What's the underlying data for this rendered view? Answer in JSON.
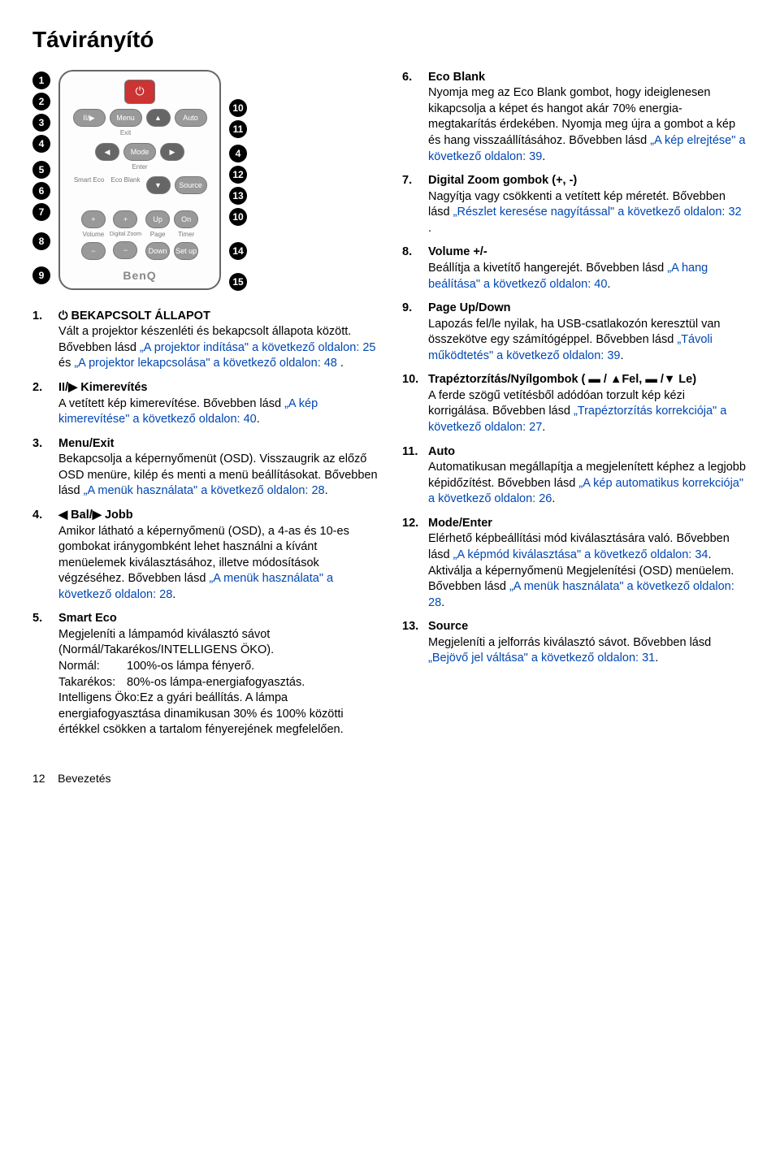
{
  "page": {
    "title": "Távirányító",
    "footer_num": "12",
    "footer_text": "Bevezetés"
  },
  "remote": {
    "menu": "Menu",
    "exit": "Exit",
    "auto": "Auto",
    "mode": "Mode",
    "enter": "Enter",
    "source": "Source",
    "smarteco": "Smart Eco",
    "ecoblank": "Eco Blank",
    "volume": "Volume",
    "digitalzoom": "Digital\nZoom",
    "page": "Page",
    "timer": "Timer",
    "up": "Up",
    "down": "Down",
    "on": "On",
    "setup": "Set up",
    "brand": "BenQ",
    "freeze": "II/▶"
  },
  "left": [
    {
      "n": "1.",
      "sym": "⏻",
      "t": "BEKAPCSOLT ÁLLAPOT",
      "b1": "Vált a projektor készenléti és bekapcsolt állapota között. Bővebben lásd ",
      "l1": "„A projektor indítása\" a következő oldalon: 25",
      "m1": " és ",
      "l2": "„A projektor lekapcsolása\" a következő oldalon: 48",
      "e1": " ."
    },
    {
      "n": "2.",
      "sym": "II/▶",
      "t": "Kimerevítés",
      "b1": "A vetített kép kimerevítése. Bővebben lásd ",
      "l1": "„A kép kimerevítése\" a következő oldalon: 40",
      "e1": "."
    },
    {
      "n": "3.",
      "t": "Menu/Exit",
      "b1": "Bekapcsolja a képernyőmenüt (OSD). Visszaugrik az előző OSD menüre, kilép és menti a menü beállításokat. Bővebben lásd ",
      "l1": "„A menük használata\" a következő oldalon: 28",
      "e1": "."
    },
    {
      "n": "4.",
      "sym": "◀ Bal/▶ Jobb",
      "t": "",
      "b1": "Amikor látható a képernyőmenü (OSD), a 4-as és 10-es gombokat iránygombként lehet használni a kívánt menüelemek kiválasztásához, illetve módosítások végzéséhez. Bővebben lásd ",
      "l1": "„A menük használata\" a következő oldalon: 28",
      "e1": "."
    },
    {
      "n": "5.",
      "t": "Smart Eco",
      "b1": "Megjeleníti a lámpamód kiválasztó sávot (Normál/Takarékos/INTELLIGENS ÖKO).",
      "dl": [
        {
          "k": "Normál:",
          "v": "100%-os lámpa fényerő."
        },
        {
          "k": "Takarékos:",
          "v": "80%-os lámpa-energiafogyasztás."
        },
        {
          "k": "Intelligens Öko:",
          "v": "Ez a gyári beállítás. A lámpa energiafogyasztása dinamikusan 30% és 100% közötti értékkel csökken a tartalom fényerejének megfelelően.",
          "full": true
        }
      ]
    }
  ],
  "right": [
    {
      "n": "6.",
      "t": "Eco Blank",
      "b1": "Nyomja meg az Eco Blank gombot, hogy ideiglenesen kikapcsolja a képet és hangot akár 70% energia-megtakarítás érdekében. Nyomja meg újra a gombot a kép és hang visszaállításához. Bővebben lásd ",
      "l1": "„A kép elrejtése\" a következő oldalon: 39",
      "e1": "."
    },
    {
      "n": "7.",
      "t": "Digital Zoom gombok (+, -)",
      "b1": "Nagyítja vagy csökkenti a vetített kép méretét. Bővebben lásd ",
      "l1": "„Részlet keresése nagyítással\" a következő oldalon: 32",
      "e1": " ."
    },
    {
      "n": "8.",
      "t": "Volume +/-",
      "b1": "Beállítja a kivetítő hangerejét. Bővebben lásd ",
      "l1": "„A hang beálítása\" a következő oldalon: 40",
      "e1": "."
    },
    {
      "n": "9.",
      "t": "Page Up/Down",
      "b1": "Lapozás fel/le nyilak, ha USB-csatlakozón keresztül van összekötve egy számítógéppel. Bővebben lásd ",
      "l1": "„Távoli működtetés\" a következő oldalon: 39",
      "e1": "."
    },
    {
      "n": "10.",
      "t": "Trapéztorzítás/Nyílgombok ( ▬ / ▲Fel,  ▬ /▼ Le)",
      "b1": "A ferde szögű vetítésből adódóan torzult kép kézi korrigálása. Bővebben lásd ",
      "l1": "„Trapéztorzítás korrekciója\" a következő oldalon: 27",
      "e1": "."
    },
    {
      "n": "11.",
      "t": "Auto",
      "b1": "Automatikusan megállapítja a megjelenített képhez a legjobb képidőzítést. Bővebben lásd ",
      "l1": "„A kép automatikus korrekciója\" a következő oldalon: 26",
      "e1": "."
    },
    {
      "n": "12.",
      "t": "Mode/Enter",
      "b1": "Elérhető képbeállítási mód kiválasztására való. Bővebben lásd ",
      "l1": "„A képmód kiválasztása\" a következő oldalon: 34",
      "e1": ".",
      "b2": "Aktiválja a képernyőmenü Megjelenítési (OSD) menüelem. Bővebben lásd ",
      "l2": "„A menük használata\" a következő oldalon: 28",
      "e2": "."
    },
    {
      "n": "13.",
      "t": "Source",
      "b1": "Megjeleníti a jelforrás kiválasztó sávot. Bővebben lásd ",
      "l1": "„Bejövő jel váltása\" a következő oldalon: 31",
      "e1": "."
    }
  ],
  "callouts": {
    "left": [
      "1",
      "2",
      "3",
      "4",
      "5",
      "6",
      "7",
      "8",
      "9"
    ],
    "right": [
      "10",
      "11",
      "4",
      "12",
      "13",
      "10",
      "14",
      "15"
    ]
  }
}
